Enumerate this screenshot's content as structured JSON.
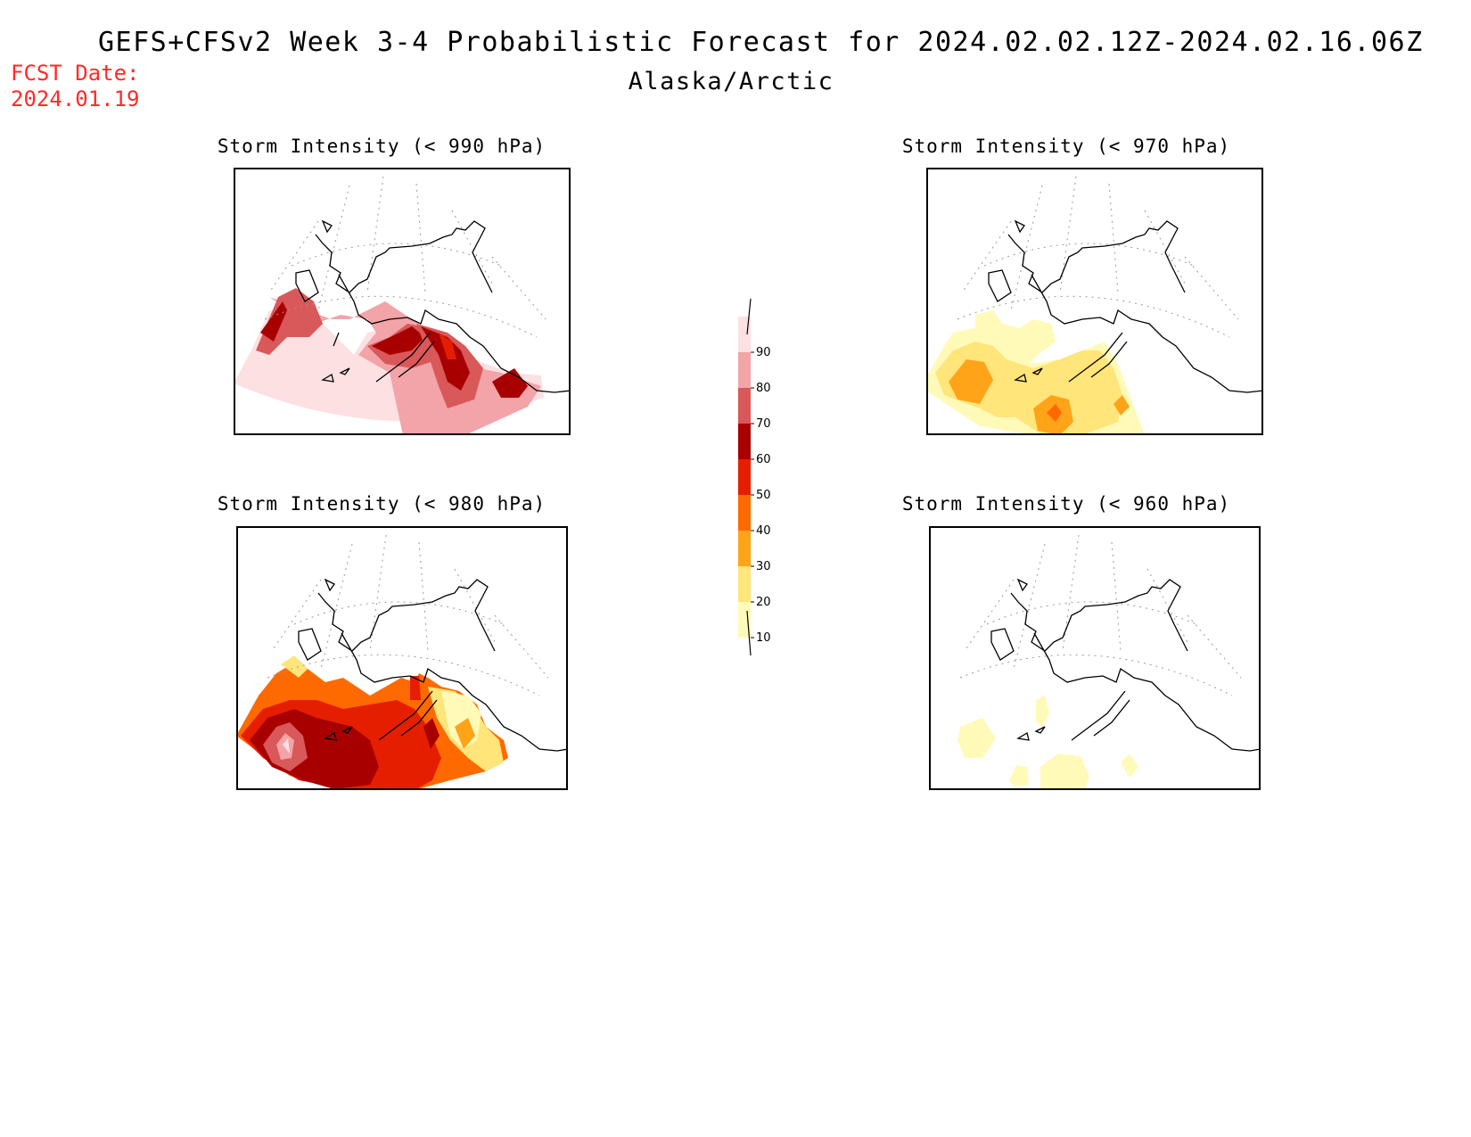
{
  "header": {
    "title": "GEFS+CFSv2 Week 3-4 Probabilistic Forecast for 2024.02.02.12Z-2024.02.16.06Z",
    "subtitle": "Alaska/Arctic",
    "fcst_label": "FCST Date:",
    "fcst_date": "2024.01.19"
  },
  "panels": [
    {
      "id": "p990",
      "title": "Storm Intensity (< 990 hPa)"
    },
    {
      "id": "p970",
      "title": "Storm Intensity (< 970 hPa)"
    },
    {
      "id": "p980",
      "title": "Storm Intensity (< 980 hPa)"
    },
    {
      "id": "p960",
      "title": "Storm Intensity (< 960 hPa)"
    }
  ],
  "legend": {
    "levels": [
      "10",
      "20",
      "30",
      "40",
      "50",
      "60",
      "70",
      "80",
      "90"
    ],
    "colors": [
      "#fffab8",
      "#ffe57a",
      "#ffa319",
      "#ff6a00",
      "#e61e00",
      "#a80000",
      "#d9585a",
      "#f2a4a8",
      "#fde0e2"
    ]
  }
}
